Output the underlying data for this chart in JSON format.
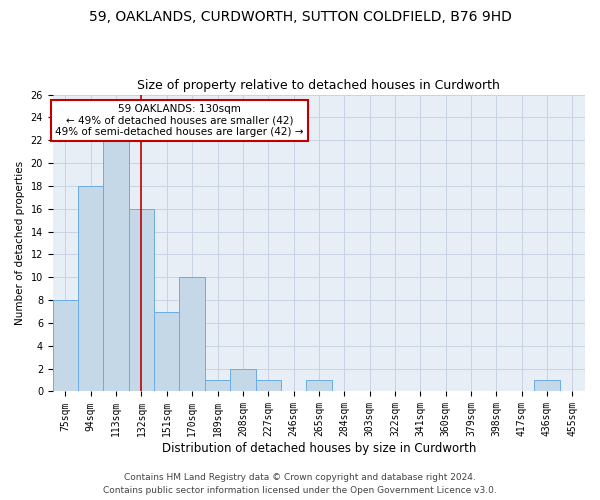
{
  "title1": "59, OAKLANDS, CURDWORTH, SUTTON COLDFIELD, B76 9HD",
  "title2": "Size of property relative to detached houses in Curdworth",
  "xlabel": "Distribution of detached houses by size in Curdworth",
  "ylabel": "Number of detached properties",
  "categories": [
    "75sqm",
    "94sqm",
    "113sqm",
    "132sqm",
    "151sqm",
    "170sqm",
    "189sqm",
    "208sqm",
    "227sqm",
    "246sqm",
    "265sqm",
    "284sqm",
    "303sqm",
    "322sqm",
    "341sqm",
    "360sqm",
    "379sqm",
    "398sqm",
    "417sqm",
    "436sqm",
    "455sqm"
  ],
  "values": [
    8,
    18,
    22,
    16,
    7,
    10,
    1,
    2,
    1,
    0,
    1,
    0,
    0,
    0,
    0,
    0,
    0,
    0,
    0,
    1,
    0
  ],
  "bar_color": "#c5d8e8",
  "bar_edge_color": "#6aace6",
  "highlight_index": 3,
  "highlight_color": "#c00000",
  "annotation_text": "59 OAKLANDS: 130sqm\n← 49% of detached houses are smaller (42)\n49% of semi-detached houses are larger (42) →",
  "annotation_box_color": "#ffffff",
  "annotation_box_edge": "#c00000",
  "ylim": [
    0,
    26
  ],
  "yticks": [
    0,
    2,
    4,
    6,
    8,
    10,
    12,
    14,
    16,
    18,
    20,
    22,
    24,
    26
  ],
  "grid_color": "#c8d4e4",
  "bg_color": "#e8eef6",
  "footer1": "Contains HM Land Registry data © Crown copyright and database right 2024.",
  "footer2": "Contains public sector information licensed under the Open Government Licence v3.0.",
  "title1_fontsize": 10,
  "title2_fontsize": 9,
  "xlabel_fontsize": 8.5,
  "ylabel_fontsize": 7.5,
  "tick_fontsize": 7,
  "footer_fontsize": 6.5,
  "ann_fontsize": 7.5
}
